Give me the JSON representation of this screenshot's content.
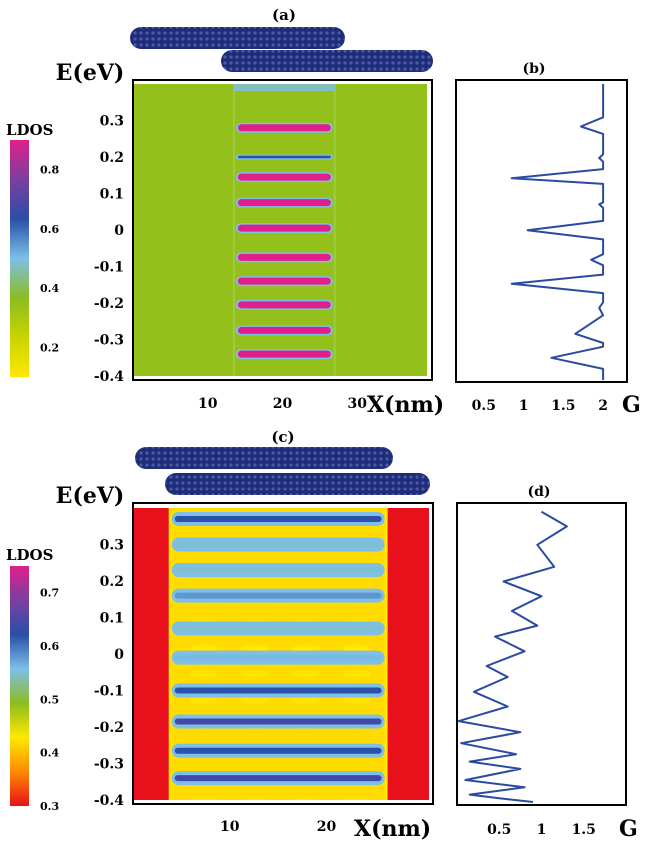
{
  "colors": {
    "tube_fill": "#1f2d78",
    "tube_dot": "#4a5aa8",
    "background_a": "#8cbd1f",
    "background_c": "#e8101a",
    "conductance_line": "#2b4aa0"
  },
  "colormap_a": [
    "#ffe800",
    "#c8d400",
    "#8cbd1f",
    "#7dbfe8",
    "#2a4fa8",
    "#7a3fa0",
    "#e0208a"
  ],
  "colormap_c": [
    "#e8101a",
    "#ff8a00",
    "#ffe800",
    "#8cbd1f",
    "#7dbfe8",
    "#2a4fa8",
    "#7a3fa0",
    "#e0208a"
  ],
  "chart_data": [
    {
      "panel": "(a)",
      "type": "heatmap",
      "xlabel": "X(nm)",
      "ylabel": "E(eV)",
      "xticks": [
        "10",
        "20",
        "30"
      ],
      "yticks": [
        "0.3",
        "0.2",
        "0.1",
        "0",
        "-0.1",
        "-0.2",
        "-0.3",
        "-0.4"
      ],
      "xlim": [
        0,
        40
      ],
      "ylim": [
        -0.4,
        0.4
      ],
      "colorbar_title": "LDOS",
      "colorbar_ticks": [
        "0.8",
        "0.6",
        "0.4",
        "0.2"
      ],
      "colorbar_range": [
        0.1,
        0.9
      ],
      "background_value": 0.35,
      "overlap_x_range": [
        13.5,
        27
      ],
      "resonance_energies": [
        0.28,
        0.2,
        0.145,
        0.075,
        0.005,
        -0.075,
        -0.14,
        -0.205,
        -0.275,
        -0.34
      ]
    },
    {
      "panel": "(b)",
      "type": "line",
      "xlabel": "G",
      "xticks": [
        "0.5",
        "1",
        "1.5",
        "2"
      ],
      "xlim": [
        0.15,
        2.3
      ],
      "ylim": [
        -0.4,
        0.4
      ],
      "series": [
        {
          "x": [
            2,
            2,
            1.72,
            2,
            2,
            1.95,
            2,
            2,
            0.85,
            2,
            2,
            1.95,
            2,
            2,
            1.05,
            2,
            2,
            1.85,
            2,
            2,
            0.85,
            2,
            2,
            1.95,
            2,
            1.65,
            2,
            2,
            1.35,
            2,
            2
          ],
          "y": [
            0.4,
            0.31,
            0.285,
            0.265,
            0.21,
            0.2,
            0.19,
            0.17,
            0.145,
            0.13,
            0.08,
            0.075,
            0.065,
            0.03,
            0.005,
            -0.02,
            -0.06,
            -0.075,
            -0.09,
            -0.115,
            -0.14,
            -0.165,
            -0.19,
            -0.205,
            -0.225,
            -0.275,
            -0.3,
            -0.31,
            -0.34,
            -0.37,
            -0.4
          ]
        }
      ]
    },
    {
      "panel": "(c)",
      "type": "heatmap",
      "xlabel": "X(nm)",
      "ylabel": "E(eV)",
      "xticks": [
        "10",
        "20"
      ],
      "yticks": [
        "0.3",
        "0.2",
        "0.1",
        "0",
        "-0.1",
        "-0.2",
        "-0.3",
        "-0.4"
      ],
      "xlim": [
        0,
        31
      ],
      "ylim": [
        -0.4,
        0.4
      ],
      "colorbar_title": "LDOS",
      "colorbar_ticks": [
        "0.7",
        "0.6",
        "0.5",
        "0.4",
        "0.3"
      ],
      "colorbar_range": [
        0.3,
        0.75
      ],
      "background_value": 0.3,
      "overlap_x_range": [
        4,
        26
      ],
      "bands": [
        {
          "e": 0.37,
          "v": 0.62
        },
        {
          "e": 0.3,
          "v": 0.55
        },
        {
          "e": 0.23,
          "v": 0.55
        },
        {
          "e": 0.16,
          "v": 0.58
        },
        {
          "e": 0.07,
          "v": 0.55
        },
        {
          "e": -0.01,
          "v": 0.56
        },
        {
          "e": -0.1,
          "v": 0.62
        },
        {
          "e": -0.185,
          "v": 0.64
        },
        {
          "e": -0.265,
          "v": 0.62
        },
        {
          "e": -0.34,
          "v": 0.64
        }
      ]
    },
    {
      "panel": "(d)",
      "type": "line",
      "xlabel": "G",
      "xticks": [
        "0.5",
        "1",
        "1.5"
      ],
      "xlim": [
        0,
        2.0
      ],
      "ylim": [
        -0.4,
        0.4
      ],
      "series": [
        {
          "x": [
            1.0,
            1.3,
            0.95,
            1.15,
            0.55,
            1.0,
            0.65,
            0.95,
            0.45,
            0.8,
            0.35,
            0.6,
            0.2,
            0.6,
            0.02,
            0.75,
            0.05,
            0.7,
            0.15,
            0.75,
            0.1,
            0.8,
            0.15,
            0.5,
            0.9
          ],
          "y": [
            0.39,
            0.35,
            0.3,
            0.24,
            0.2,
            0.16,
            0.12,
            0.08,
            0.05,
            0.01,
            -0.03,
            -0.06,
            -0.1,
            -0.14,
            -0.18,
            -0.21,
            -0.24,
            -0.27,
            -0.29,
            -0.31,
            -0.34,
            -0.36,
            -0.38,
            -0.39,
            -0.4
          ]
        }
      ]
    }
  ]
}
